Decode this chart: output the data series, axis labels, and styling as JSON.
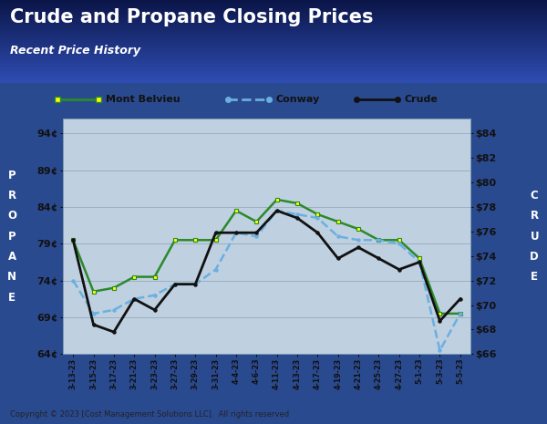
{
  "title": "Crude and Propane Closing Prices",
  "subtitle": "Recent Price History",
  "ylabel_left": "PROPANE",
  "ylabel_right": "CRUDE",
  "copyright": "Copyright © 2023 [Cost Management Solutions LLC].  All rights reserved",
  "x_labels": [
    "3-13-23",
    "3-15-23",
    "3-17-23",
    "3-21-23",
    "3-23-23",
    "3-27-23",
    "3-29-23",
    "3-31-23",
    "4-4-23",
    "4-6-23",
    "4-11-23",
    "4-13-23",
    "4-17-23",
    "4-19-23",
    "4-21-23",
    "4-25-23",
    "4-27-23",
    "5-1-23",
    "5-3-23",
    "5-5-23"
  ],
  "mont_belvieu": [
    79.5,
    72.5,
    73.0,
    74.5,
    74.5,
    79.5,
    79.5,
    79.5,
    83.5,
    82.0,
    85.0,
    84.5,
    83.0,
    82.0,
    81.0,
    79.5,
    79.5,
    77.0,
    69.5,
    69.5
  ],
  "conway": [
    74.0,
    69.5,
    70.0,
    71.5,
    72.0,
    73.5,
    73.5,
    75.5,
    80.5,
    80.0,
    83.5,
    83.0,
    82.5,
    80.0,
    79.5,
    79.5,
    79.0,
    76.5,
    64.5,
    69.5
  ],
  "crude": [
    79.5,
    68.0,
    67.0,
    71.5,
    70.0,
    73.5,
    73.5,
    80.5,
    80.5,
    80.5,
    83.5,
    82.5,
    80.5,
    77.0,
    78.5,
    77.0,
    75.5,
    76.5,
    68.5,
    71.5
  ],
  "propane_yticks": [
    64,
    69,
    74,
    79,
    84,
    89,
    94
  ],
  "crude_right_ticks_val": [
    66,
    68,
    70,
    72,
    74,
    76,
    78,
    80,
    82,
    84
  ],
  "crude_right_ticks_label": [
    "$66",
    "$68",
    "$70",
    "$72",
    "$74",
    "$76",
    "$78",
    "$80",
    "$82",
    "$84"
  ],
  "ymin": 64,
  "ymax": 96,
  "color_mb": "#2a8a2a",
  "color_conway": "#6ab0e0",
  "color_crude": "#111111",
  "color_bg_chart": "#bfd0e0",
  "color_grid": "#9ab0c0",
  "color_legend_bg": "#ccdde8",
  "header_top": "#0a1a5c",
  "header_bot": "#2a5aaa",
  "outer_bg": "#2a4a90"
}
